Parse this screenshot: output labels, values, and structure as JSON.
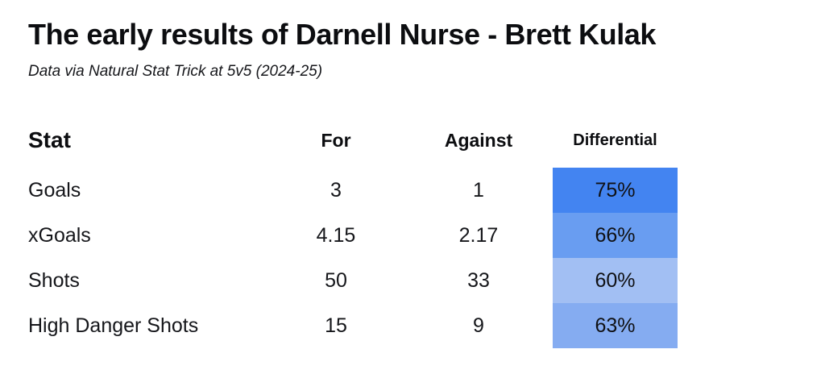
{
  "page": {
    "title": "The early results of Darnell Nurse - Brett Kulak",
    "subtitle": "Data via Natural Stat Trick at 5v5 (2024-25)"
  },
  "table": {
    "headers": {
      "stat": "Stat",
      "for": "For",
      "against": "Against",
      "differential": "Differential"
    },
    "rows": [
      {
        "stat": "Goals",
        "for": "3",
        "against": "1",
        "differential": "75%",
        "diff_color": "#4384f1"
      },
      {
        "stat": "xGoals",
        "for": "4.15",
        "against": "2.17",
        "differential": "66%",
        "diff_color": "#699df1"
      },
      {
        "stat": "Shots",
        "for": "50",
        "against": "33",
        "differential": "60%",
        "diff_color": "#a2bff3"
      },
      {
        "stat": "High Danger Shots",
        "for": "15",
        "against": "9",
        "differential": "63%",
        "diff_color": "#85acf1"
      }
    ]
  },
  "chart_data": {
    "type": "table",
    "title": "The early results of Darnell Nurse - Brett Kulak",
    "subtitle": "Data via Natural Stat Trick at 5v5 (2024-25)",
    "columns": [
      "Stat",
      "For",
      "Against",
      "Differential"
    ],
    "rows": [
      [
        "Goals",
        3,
        1,
        "75%"
      ],
      [
        "xGoals",
        4.15,
        2.17,
        "66%"
      ],
      [
        "Shots",
        50,
        33,
        "60%"
      ],
      [
        "High Danger Shots",
        15,
        9,
        "63%"
      ]
    ],
    "differential_cell_colors": [
      "#4384f1",
      "#699df1",
      "#a2bff3",
      "#85acf1"
    ],
    "legend_position": "none",
    "grid": false
  }
}
